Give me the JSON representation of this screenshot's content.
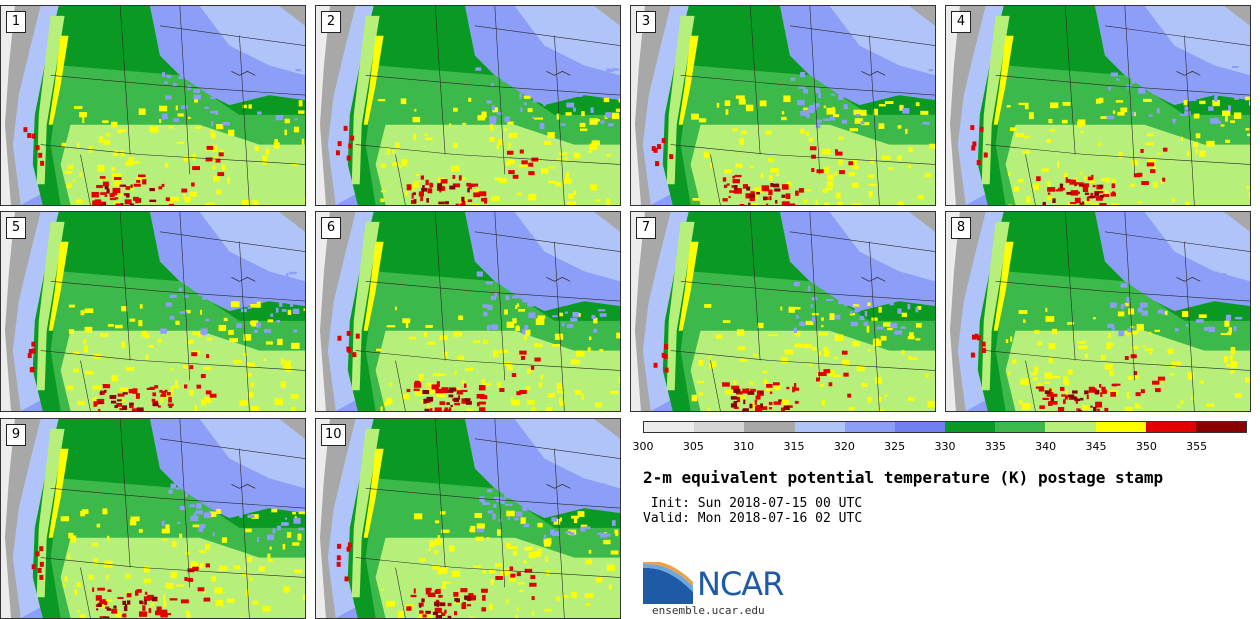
{
  "panels": [
    {
      "label": "1"
    },
    {
      "label": "2"
    },
    {
      "label": "3"
    },
    {
      "label": "4"
    },
    {
      "label": "5"
    },
    {
      "label": "6"
    },
    {
      "label": "7"
    },
    {
      "label": "8"
    },
    {
      "label": "9"
    },
    {
      "label": "10"
    }
  ],
  "colorbar": {
    "colors": [
      "#ececec",
      "#d6d6d6",
      "#a8a8a8",
      "#b0c4fa",
      "#8c9ef7",
      "#6f7ff0",
      "#0a9a24",
      "#3db84a",
      "#b6f07a",
      "#ffff00",
      "#e30000",
      "#8a0000"
    ],
    "tick_labels": [
      "300",
      "305",
      "310",
      "315",
      "320",
      "325",
      "330",
      "335",
      "340",
      "345",
      "350",
      "355"
    ]
  },
  "title": "2-m equivalent potential temperature (K) postage stamp",
  "init_text": " Init: Sun 2018-07-15 00 UTC",
  "valid_text": "Valid: Mon 2018-07-16 02 UTC",
  "logo": {
    "text": "NCAR",
    "url": "ensemble.ucar.edu"
  }
}
